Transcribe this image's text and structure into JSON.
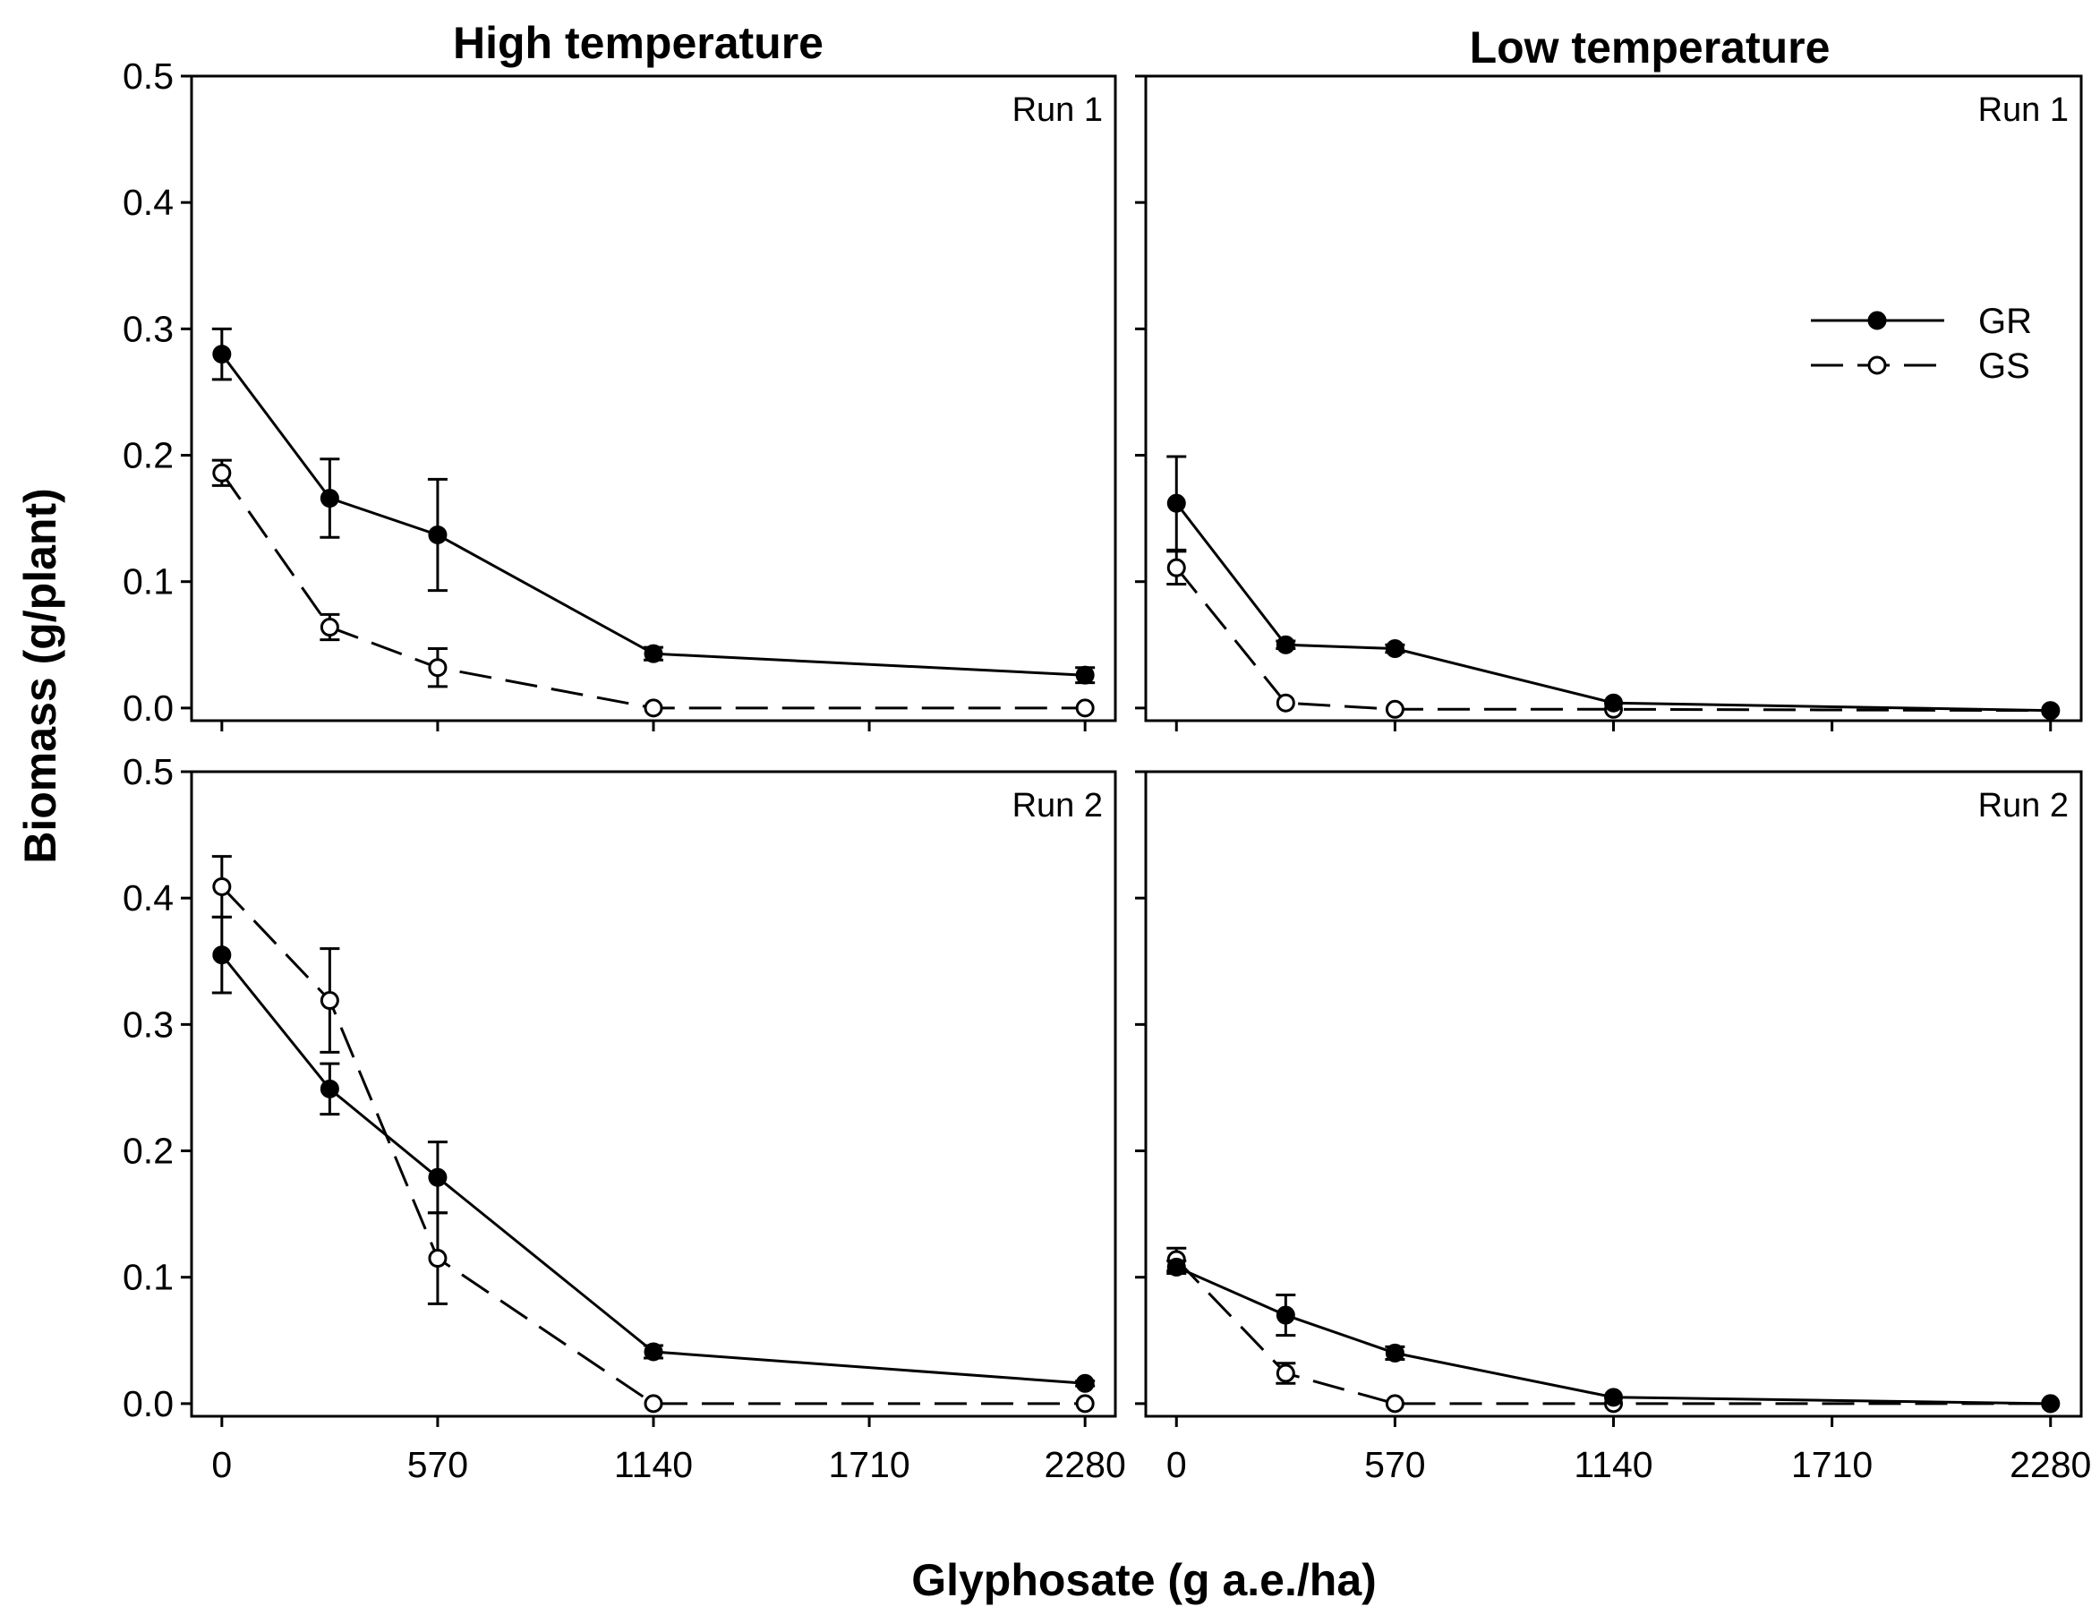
{
  "figure": {
    "xlabel": "Glyphosate (g a.e./ha)",
    "ylabel": "Biomass (g/plant)",
    "column_titles": [
      "High temperature",
      "Low temperature"
    ],
    "legend": {
      "gr": "GR",
      "gs": "GS"
    }
  },
  "chart_data": [
    {
      "type": "line",
      "column_title": "High temperature",
      "panel_label": "Run 1",
      "x": [
        0,
        285,
        570,
        1140,
        2280
      ],
      "xticks": [
        "0",
        "570",
        "1140",
        "1710",
        "2280"
      ],
      "xtick_values": [
        0,
        570,
        1140,
        1710,
        2280
      ],
      "yticks": [
        "0.0",
        "0.1",
        "0.2",
        "0.3",
        "0.4",
        "0.5"
      ],
      "ytick_values": [
        0,
        0.1,
        0.2,
        0.3,
        0.4,
        0.5
      ],
      "xlim": [
        -80,
        2360
      ],
      "ylim": [
        -0.01,
        0.5
      ],
      "series": [
        {
          "name": "GR",
          "style": "solid-filled",
          "values": [
            0.28,
            0.166,
            0.137,
            0.043,
            0.026
          ],
          "errors": [
            0.02,
            0.031,
            0.044,
            0.005,
            0.006
          ]
        },
        {
          "name": "GS",
          "style": "dashed-open",
          "values": [
            0.186,
            0.064,
            0.032,
            0.0,
            0.0
          ],
          "errors": [
            0.01,
            0.01,
            0.015,
            0,
            0
          ]
        }
      ]
    },
    {
      "type": "line",
      "column_title": "Low temperature",
      "panel_label": "Run 1",
      "x": [
        0,
        285,
        570,
        1140,
        2280
      ],
      "xticks": [
        "0",
        "570",
        "1140",
        "1710",
        "2280"
      ],
      "xtick_values": [
        0,
        570,
        1140,
        1710,
        2280
      ],
      "yticks": [],
      "ytick_values": [
        0,
        0.1,
        0.2,
        0.3,
        0.4,
        0.5
      ],
      "xlim": [
        -80,
        2360
      ],
      "ylim": [
        -0.01,
        0.5
      ],
      "legend_shown": true,
      "series": [
        {
          "name": "GR",
          "style": "solid-filled",
          "values": [
            0.162,
            0.05,
            0.047,
            0.004,
            -0.002
          ],
          "errors": [
            0.037,
            0.003,
            0.003,
            0,
            0
          ]
        },
        {
          "name": "GS",
          "style": "dashed-open",
          "values": [
            0.111,
            0.004,
            -0.001,
            -0.001,
            -0.002
          ],
          "errors": [
            0.013,
            0,
            0,
            0,
            0
          ]
        }
      ]
    },
    {
      "type": "line",
      "column_title": "High temperature",
      "panel_label": "Run 2",
      "x": [
        0,
        285,
        570,
        1140,
        2280
      ],
      "xticks": [
        "0",
        "570",
        "1140",
        "1710",
        "2280"
      ],
      "xtick_values": [
        0,
        570,
        1140,
        1710,
        2280
      ],
      "yticks": [
        "0.0",
        "0.1",
        "0.2",
        "0.3",
        "0.4",
        "0.5"
      ],
      "ytick_values": [
        0,
        0.1,
        0.2,
        0.3,
        0.4,
        0.5
      ],
      "xlim": [
        -80,
        2360
      ],
      "ylim": [
        -0.01,
        0.5
      ],
      "series": [
        {
          "name": "GR",
          "style": "solid-filled",
          "values": [
            0.355,
            0.249,
            0.179,
            0.041,
            0.016
          ],
          "errors": [
            0.03,
            0.02,
            0.028,
            0.005,
            0.002
          ]
        },
        {
          "name": "GS",
          "style": "dashed-open",
          "values": [
            0.409,
            0.319,
            0.115,
            0.0,
            0.0
          ],
          "errors": [
            0.024,
            0.041,
            0.036,
            0,
            0
          ]
        }
      ]
    },
    {
      "type": "line",
      "column_title": "Low temperature",
      "panel_label": "Run 2",
      "x": [
        0,
        285,
        570,
        1140,
        2280
      ],
      "xticks": [
        "0",
        "570",
        "1140",
        "1710",
        "2280"
      ],
      "xtick_values": [
        0,
        570,
        1140,
        1710,
        2280
      ],
      "yticks": [],
      "ytick_values": [
        0,
        0.1,
        0.2,
        0.3,
        0.4,
        0.5
      ],
      "xlim": [
        -80,
        2360
      ],
      "ylim": [
        -0.01,
        0.5
      ],
      "series": [
        {
          "name": "GR",
          "style": "solid-filled",
          "values": [
            0.108,
            0.07,
            0.04,
            0.005,
            0.0
          ],
          "errors": [
            0.005,
            0.016,
            0.005,
            0,
            0
          ]
        },
        {
          "name": "GS",
          "style": "dashed-open",
          "values": [
            0.114,
            0.024,
            0.0,
            0.0,
            0.0
          ],
          "errors": [
            0.009,
            0.008,
            0,
            0,
            0
          ]
        }
      ]
    }
  ]
}
